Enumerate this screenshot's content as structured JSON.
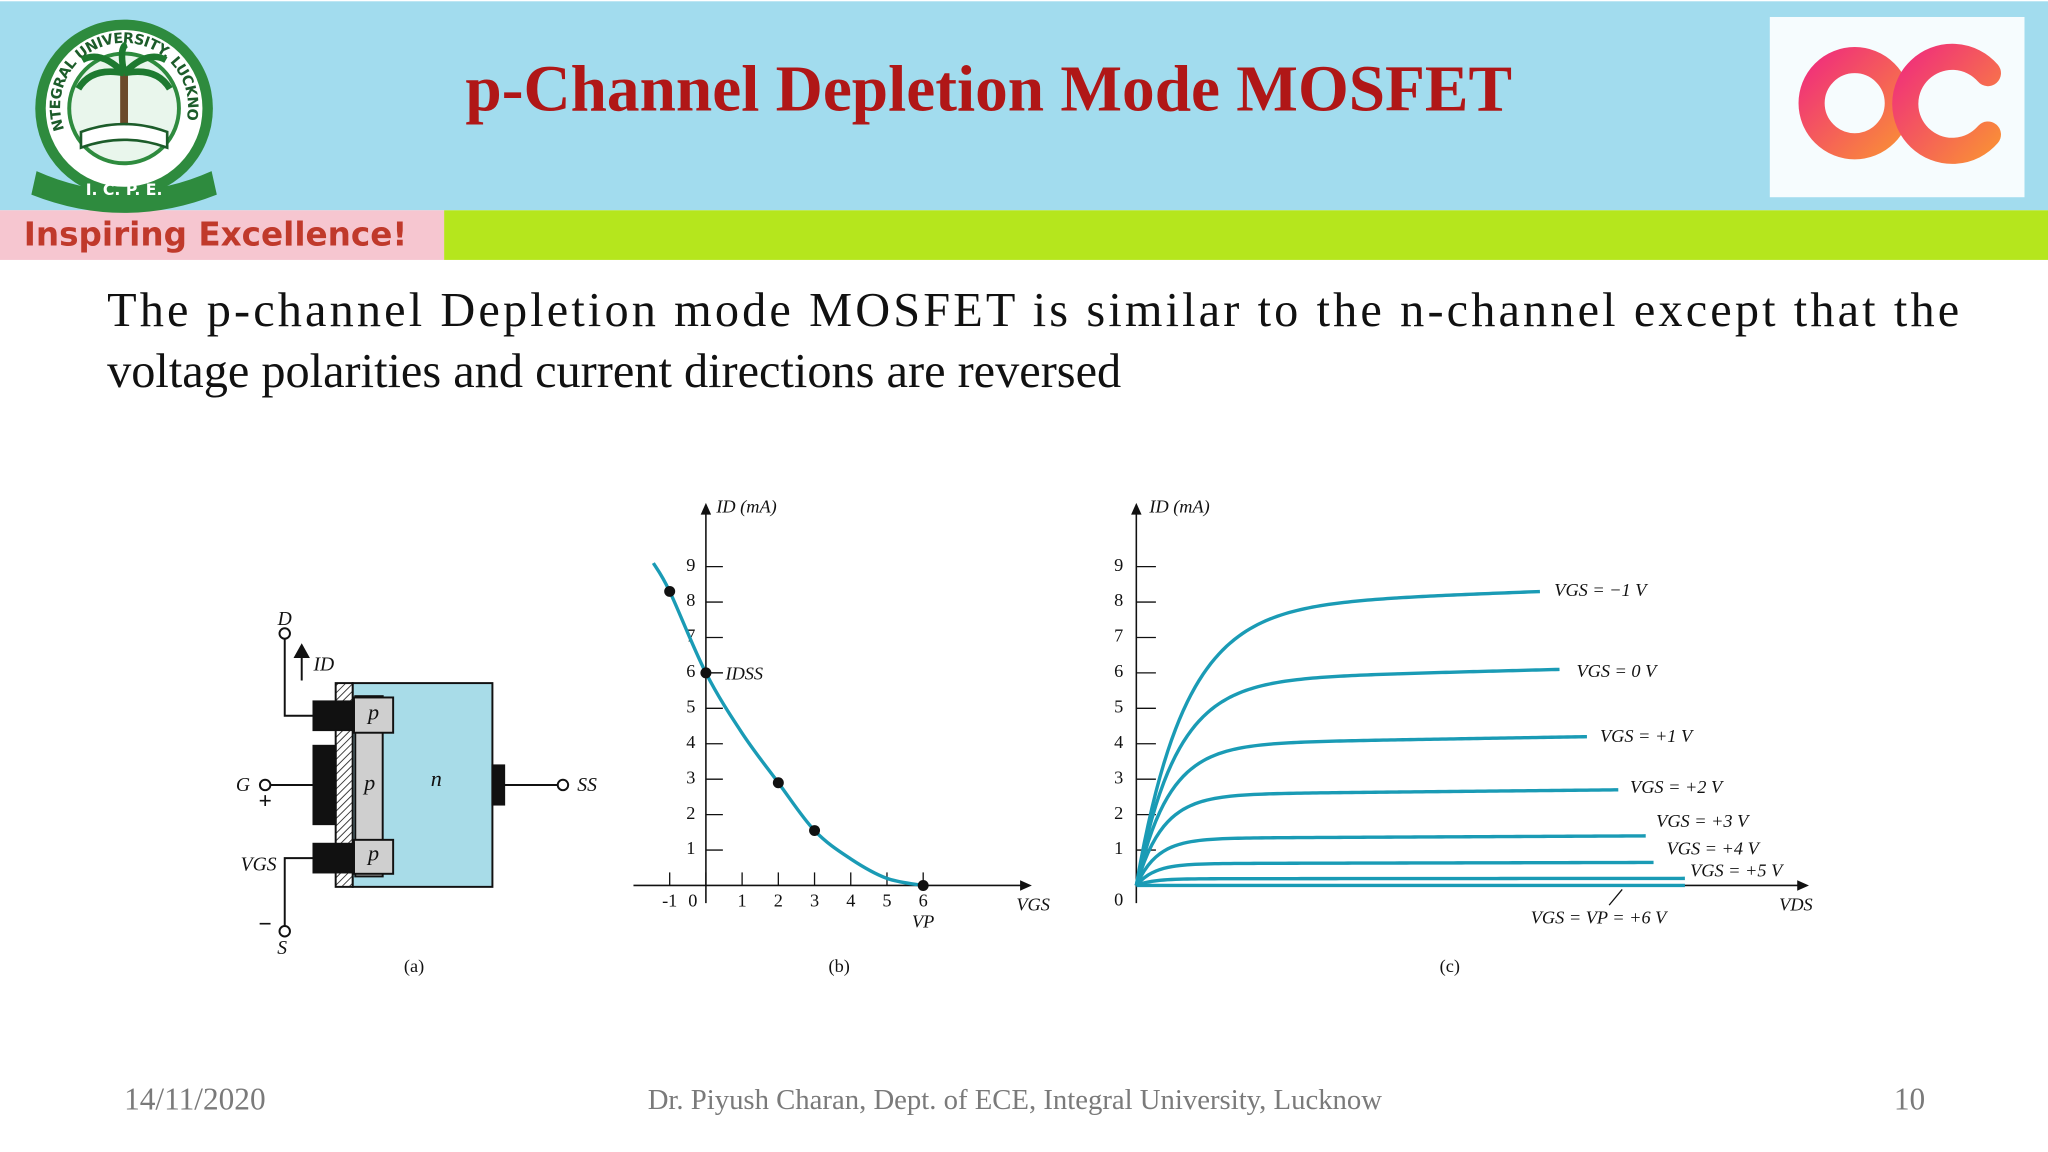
{
  "header": {
    "title": "p-Channel Depletion Mode MOSFET",
    "tagline": "Inspiring Excellence!",
    "logo_text": "INTEGRAL UNIVERSITY, LUCKNOW",
    "logo_initials": "I.   C.   P.   E."
  },
  "body": {
    "lines": [
      "The p-channel Depletion mode MOSFET is similar to the  n-channel except that the",
      "voltage polarities and current directions are reversed"
    ]
  },
  "figure_a": {
    "drain": "D",
    "drain_current": "ID",
    "gate": "G",
    "plus": "+",
    "p_top": "p",
    "p_channel": "p",
    "p_bottom": "p",
    "substrate": "n",
    "ss": "SS",
    "vgs": "VGS",
    "minus": "−",
    "source": "S",
    "caption": "(a)"
  },
  "chart_data": [
    {
      "type": "line",
      "y_label": "ID (mA)",
      "x_label": "VGS",
      "annotations": [
        "IDSS",
        "VP"
      ],
      "caption": "(b)",
      "x": [
        -1.45,
        -1,
        0,
        1,
        2,
        3,
        4,
        5,
        6
      ],
      "series": [
        {
          "color": "#1a9bb5",
          "values": [
            9.1,
            8.3,
            6,
            4.3,
            2.9,
            1.55,
            0.75,
            0.2,
            0
          ]
        }
      ],
      "points": {
        "x": [
          -1,
          0,
          2,
          3,
          6
        ],
        "values": [
          8.3,
          6,
          2.9,
          1.55,
          0
        ]
      },
      "xlim": [
        -2,
        9
      ],
      "ylim": [
        -0.5,
        10.8
      ],
      "xticks": [
        -1,
        0,
        1,
        2,
        3,
        4,
        5,
        6
      ],
      "yticks": [
        1,
        2,
        3,
        4,
        5,
        6,
        7,
        8,
        9
      ]
    },
    {
      "type": "curves",
      "y_label": "ID (mA)",
      "x_label": "VDS",
      "caption": "(c)",
      "ylim": [
        -0.5,
        10.8
      ],
      "yticks": [
        0,
        1,
        2,
        3,
        4,
        5,
        6,
        7,
        8,
        9
      ],
      "series": [
        {
          "name": "VGS = −1 V",
          "color": "#1a9bb5",
          "values": [
            8.3
          ]
        },
        {
          "name": "VGS = 0 V",
          "color": "#1a9bb5",
          "values": [
            6.1
          ]
        },
        {
          "name": "VGS = +1 V",
          "color": "#1a9bb5",
          "values": [
            4.2
          ]
        },
        {
          "name": "VGS = +2 V",
          "color": "#1a9bb5",
          "values": [
            2.7
          ]
        },
        {
          "name": "VGS = +3 V",
          "color": "#1a9bb5",
          "values": [
            1.4
          ]
        },
        {
          "name": "VGS = +4 V",
          "color": "#1a9bb5",
          "values": [
            0.65
          ]
        },
        {
          "name": "VGS = +5 V",
          "color": "#1a9bb5",
          "values": [
            0.2
          ]
        },
        {
          "name": "VGS = VP = +6 V",
          "color": "#1a9bb5",
          "values": [
            0
          ]
        }
      ]
    }
  ],
  "footer": {
    "date": "14/11/2020",
    "author": "Dr. Piyush Charan, Dept. of ECE, Integral University, Lucknow",
    "page": "10"
  }
}
